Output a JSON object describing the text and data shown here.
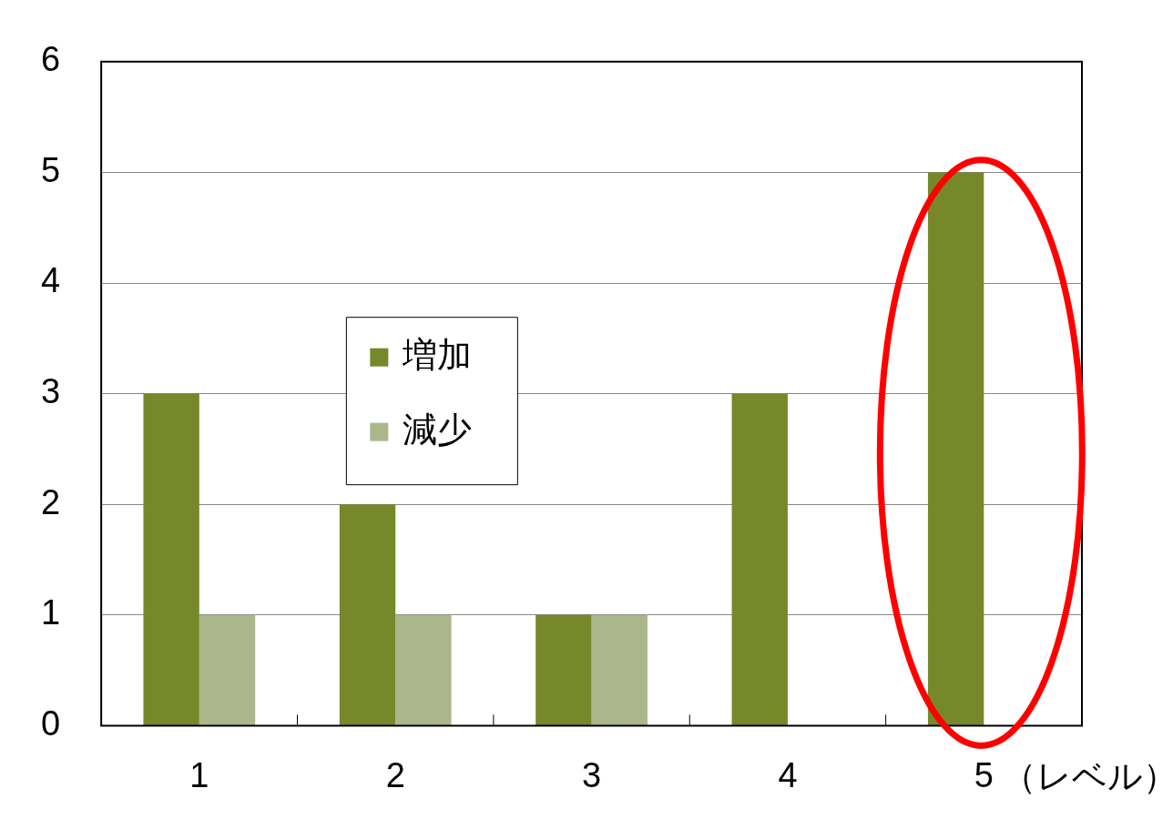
{
  "chart_data": {
    "type": "bar",
    "xlabel": "（レベル）",
    "categories": [
      "1",
      "2",
      "3",
      "4",
      "5"
    ],
    "series": [
      {
        "name": "増加",
        "color": "#76882a",
        "values": [
          3,
          2,
          1,
          3,
          5
        ]
      },
      {
        "name": "減少",
        "color": "#abb78a",
        "values": [
          1,
          1,
          1,
          0,
          0
        ]
      }
    ],
    "ylim": [
      0,
      6
    ],
    "yticks": [
      0,
      1,
      2,
      3,
      4,
      5,
      6
    ],
    "grid": "y",
    "legend": "left"
  }
}
